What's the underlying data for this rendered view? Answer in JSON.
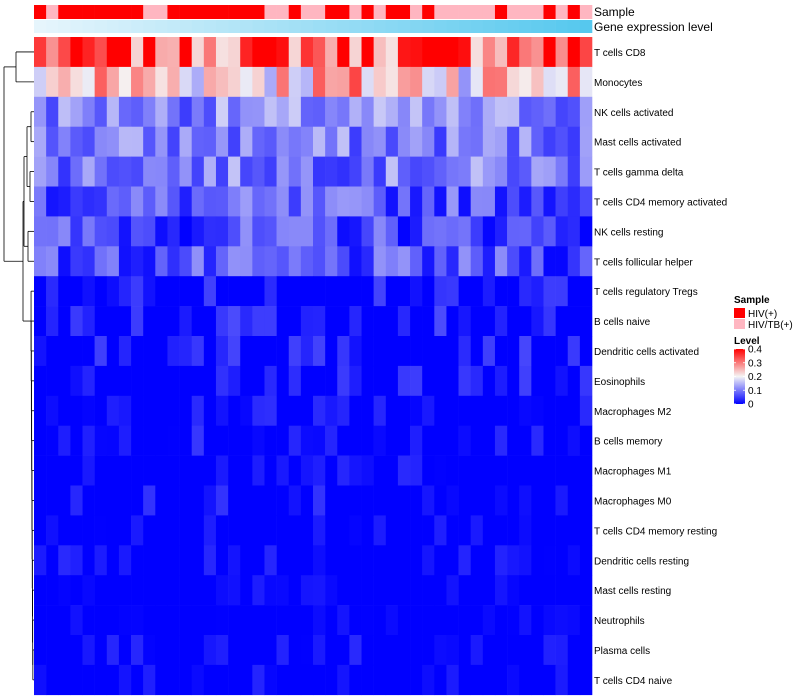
{
  "chart_data": {
    "type": "heatmap",
    "title": "",
    "annotation_tracks": [
      {
        "label": "Sample",
        "kind": "categorical"
      },
      {
        "label": "Gene expression level",
        "kind": "gradient",
        "from": "#e6f5fc",
        "to": "#56c8ee"
      }
    ],
    "n_samples": 46,
    "sample_groups": [
      "HIV(+)",
      "HIV/TB(+)",
      "HIV(+)",
      "HIV(+)",
      "HIV(+)",
      "HIV(+)",
      "HIV(+)",
      "HIV(+)",
      "HIV(+)",
      "HIV/TB(+)",
      "HIV/TB(+)",
      "HIV(+)",
      "HIV(+)",
      "HIV(+)",
      "HIV(+)",
      "HIV(+)",
      "HIV(+)",
      "HIV(+)",
      "HIV(+)",
      "HIV/TB(+)",
      "HIV/TB(+)",
      "HIV(+)",
      "HIV/TB(+)",
      "HIV/TB(+)",
      "HIV(+)",
      "HIV(+)",
      "HIV/TB(+)",
      "HIV(+)",
      "HIV/TB(+)",
      "HIV(+)",
      "HIV(+)",
      "HIV/TB(+)",
      "HIV(+)",
      "HIV/TB(+)",
      "HIV/TB(+)",
      "HIV/TB(+)",
      "HIV/TB(+)",
      "HIV/TB(+)",
      "HIV(+)",
      "HIV/TB(+)",
      "HIV/TB(+)",
      "HIV/TB(+)",
      "HIV(+)",
      "HIV/TB(+)",
      "HIV(+)",
      "HIV/TB(+)"
    ],
    "rows": [
      "T cells CD8",
      "Monocytes",
      "NK cells activated",
      "Mast cells activated",
      "T cells gamma delta",
      "T cells CD4 memory activated",
      "NK cells resting",
      "T cells follicular helper",
      "T cells regulatory  Tregs",
      "B cells naive",
      "Dendritic cells activated",
      "Eosinophils",
      "Macrophages M2",
      "B cells memory",
      "Macrophages M1",
      "Macrophages M0",
      "T cells CD4 memory resting",
      "Dendritic cells resting",
      "Mast cells resting",
      "Neutrophils",
      "Plasma cells",
      "T cells CD4 naive"
    ],
    "row_means": [
      0.33,
      0.24,
      0.11,
      0.1,
      0.1,
      0.07,
      0.06,
      0.06,
      0.03,
      0.04,
      0.04,
      0.03,
      0.02,
      0.02,
      0.01,
      0.02,
      0.01,
      0.01,
      0.0,
      0.0,
      0.01,
      0.01
    ],
    "color_scale": {
      "min": 0,
      "max": 0.4,
      "stops": [
        {
          "value": 0,
          "color": "#0000ff"
        },
        {
          "value": 0.2,
          "color": "#f5f5f5"
        },
        {
          "value": 0.4,
          "color": "#ff0000"
        }
      ]
    },
    "legend": {
      "sample": {
        "title": "Sample",
        "entries": [
          {
            "label": "HIV(+)",
            "color": "#ff0000"
          },
          {
            "label": "HIV/TB(+)",
            "color": "#ffb6c1"
          }
        ]
      },
      "level": {
        "title": "Level",
        "ticks": [
          {
            "value": 0.4,
            "label": "0.4"
          },
          {
            "value": 0.3,
            "label": "0.3"
          },
          {
            "value": 0.2,
            "label": "0.2"
          },
          {
            "value": 0.1,
            "label": "0.1"
          },
          {
            "value": 0,
            "label": "0"
          }
        ],
        "placement": "right"
      }
    },
    "row_dendrogram": true,
    "column_dendrogram": false
  }
}
